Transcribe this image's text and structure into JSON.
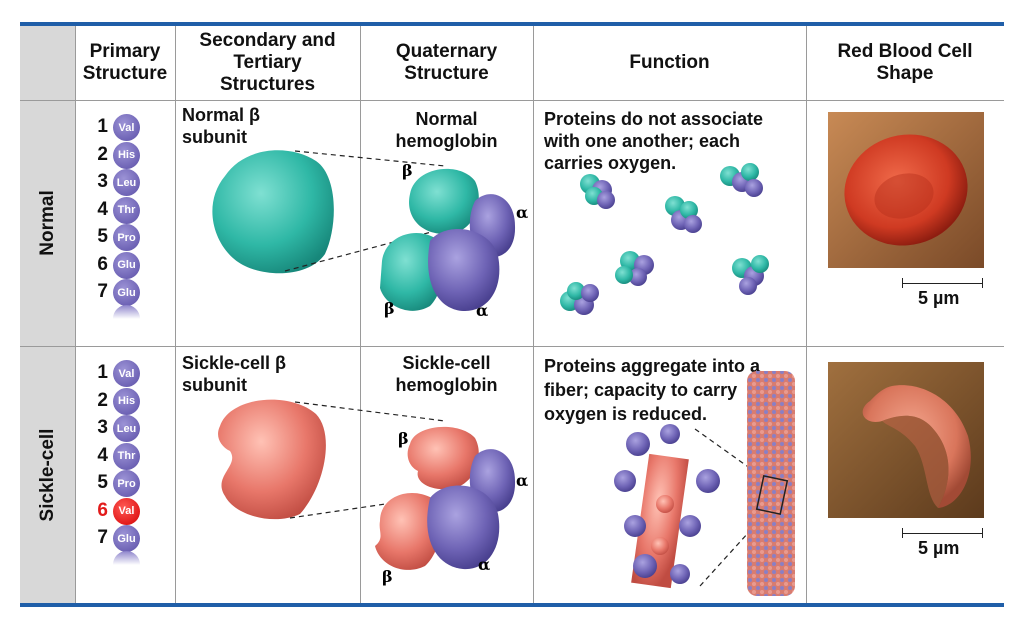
{
  "headers": {
    "primary": "Primary Structure",
    "secondary": "Secondary and Tertiary Structures",
    "quaternary": "Quaternary Structure",
    "function": "Function",
    "rbc": "Red Blood Cell Shape"
  },
  "rows": {
    "normal": {
      "label": "Normal",
      "sequence": [
        {
          "n": "1",
          "aa": "Val",
          "highlight": false
        },
        {
          "n": "2",
          "aa": "His",
          "highlight": false
        },
        {
          "n": "3",
          "aa": "Leu",
          "highlight": false
        },
        {
          "n": "4",
          "aa": "Thr",
          "highlight": false
        },
        {
          "n": "5",
          "aa": "Pro",
          "highlight": false
        },
        {
          "n": "6",
          "aa": "Glu",
          "highlight": false
        },
        {
          "n": "7",
          "aa": "Glu",
          "highlight": false
        }
      ],
      "subunit_label": "Normal β subunit",
      "hemoglobin_label": "Normal hemoglobin",
      "function_text": "Proteins do not associate with one another; each carries oxygen.",
      "scale": "5 µm"
    },
    "sickle": {
      "label": "Sickle-cell",
      "sequence": [
        {
          "n": "1",
          "aa": "Val",
          "highlight": false
        },
        {
          "n": "2",
          "aa": "His",
          "highlight": false
        },
        {
          "n": "3",
          "aa": "Leu",
          "highlight": false
        },
        {
          "n": "4",
          "aa": "Thr",
          "highlight": false
        },
        {
          "n": "5",
          "aa": "Pro",
          "highlight": false
        },
        {
          "n": "6",
          "aa": "Val",
          "highlight": true
        },
        {
          "n": "7",
          "aa": "Glu",
          "highlight": false
        }
      ],
      "subunit_label": "Sickle-cell β subunit",
      "hemoglobin_label": "Sickle-cell hemoglobin",
      "function_text": "Proteins aggregate into a fiber; capacity to carry oxygen is reduced.",
      "scale": "5 µm"
    }
  },
  "subunit_labels": {
    "beta": "β",
    "alpha": "α"
  },
  "colors": {
    "border": "#1f5ea8",
    "teal": "#2fb8a6",
    "purple": "#6e63b5",
    "salmon": "#e8776a",
    "highlight": "#e21b1b",
    "label_bg": "#d8d8d8"
  }
}
